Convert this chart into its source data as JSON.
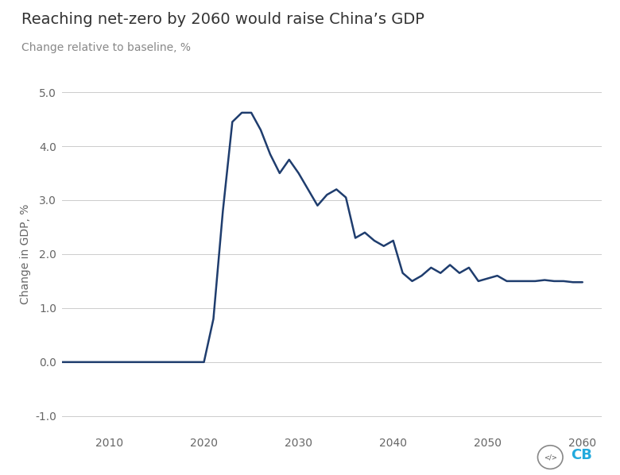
{
  "title": "Reaching net-zero by 2060 would raise China’s GDP",
  "subtitle": "Change relative to baseline, %",
  "ylabel": "Change in GDP, %",
  "line_color": "#1f3d6e",
  "background_color": "#ffffff",
  "grid_color": "#cccccc",
  "xlim": [
    2005,
    2062
  ],
  "ylim": [
    -1.3,
    5.3
  ],
  "yticks": [
    -1.0,
    0.0,
    1.0,
    2.0,
    3.0,
    4.0,
    5.0
  ],
  "xticks": [
    2010,
    2020,
    2030,
    2040,
    2050,
    2060
  ],
  "years": [
    2005,
    2006,
    2007,
    2008,
    2009,
    2010,
    2011,
    2012,
    2013,
    2014,
    2015,
    2016,
    2017,
    2018,
    2019,
    2020,
    2021,
    2022,
    2023,
    2024,
    2025,
    2026,
    2027,
    2028,
    2029,
    2030,
    2031,
    2032,
    2033,
    2034,
    2035,
    2036,
    2037,
    2038,
    2039,
    2040,
    2041,
    2042,
    2043,
    2044,
    2045,
    2046,
    2047,
    2048,
    2049,
    2050,
    2051,
    2052,
    2053,
    2054,
    2055,
    2056,
    2057,
    2058,
    2059,
    2060
  ],
  "values": [
    0.0,
    0.0,
    0.0,
    0.0,
    0.0,
    0.0,
    0.0,
    0.0,
    0.0,
    0.0,
    0.0,
    0.0,
    0.0,
    0.0,
    0.0,
    0.0,
    0.8,
    2.8,
    4.45,
    4.62,
    4.62,
    4.3,
    3.85,
    3.5,
    3.75,
    3.5,
    3.2,
    2.9,
    3.1,
    3.2,
    3.05,
    2.3,
    2.4,
    2.25,
    2.15,
    2.25,
    1.65,
    1.5,
    1.6,
    1.75,
    1.65,
    1.8,
    1.65,
    1.75,
    1.5,
    1.55,
    1.6,
    1.5,
    1.5,
    1.5,
    1.5,
    1.52,
    1.5,
    1.5,
    1.48,
    1.48
  ],
  "title_fontsize": 14,
  "subtitle_fontsize": 10,
  "tick_fontsize": 10,
  "ylabel_fontsize": 10,
  "line_width": 1.8
}
